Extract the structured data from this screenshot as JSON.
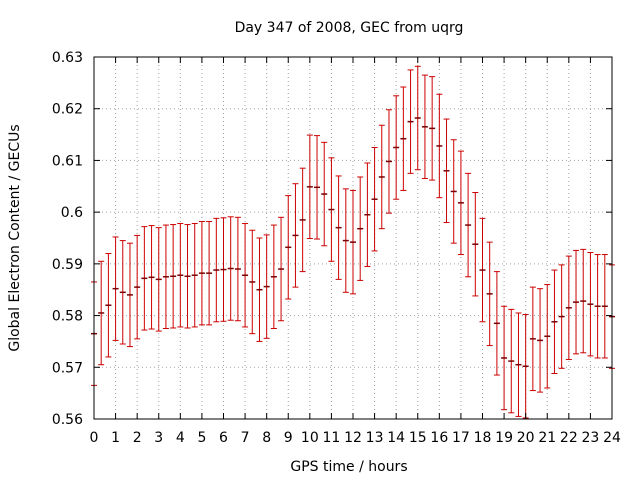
{
  "chart_data": {
    "type": "scatter",
    "title": "Day 347 of 2008, GEC from uqrg",
    "xlabel": "GPS time / hours",
    "ylabel": "Global Electron Content / GECUs",
    "xlim": [
      0,
      24
    ],
    "ylim": [
      0.56,
      0.63
    ],
    "grid": true,
    "error_bars": "symmetric, constant half-width",
    "error_half_width": 0.01,
    "x_ticks": [
      "0",
      "1",
      "2",
      "3",
      "4",
      "5",
      "6",
      "7",
      "8",
      "9",
      "10",
      "11",
      "12",
      "13",
      "14",
      "15",
      "16",
      "17",
      "18",
      "19",
      "20",
      "21",
      "22",
      "23",
      "24"
    ],
    "y_ticks": [
      "0.56",
      "0.57",
      "0.58",
      "0.59",
      "0.6",
      "0.61",
      "0.62",
      "0.63"
    ],
    "series": [
      {
        "color": "#cc0000",
        "x": [
          0,
          0.333,
          0.667,
          1,
          1.333,
          1.667,
          2,
          2.333,
          2.667,
          3,
          3.333,
          3.667,
          4,
          4.333,
          4.667,
          5,
          5.333,
          5.667,
          6,
          6.333,
          6.667,
          7,
          7.333,
          7.667,
          8,
          8.333,
          8.667,
          9,
          9.333,
          9.667,
          10,
          10.333,
          10.667,
          11,
          11.333,
          11.667,
          12,
          12.333,
          12.667,
          13,
          13.333,
          13.667,
          14,
          14.333,
          14.667,
          15,
          15.333,
          15.667,
          16,
          16.333,
          16.667,
          17,
          17.333,
          17.667,
          18,
          18.333,
          18.667,
          19,
          19.333,
          19.667,
          20,
          20.333,
          20.667,
          21,
          21.333,
          21.667,
          22,
          22.333,
          22.667,
          23,
          23.333,
          23.667,
          24
        ],
        "y": [
          0.5765,
          0.5805,
          0.582,
          0.5852,
          0.5845,
          0.584,
          0.5855,
          0.5872,
          0.5874,
          0.587,
          0.5875,
          0.5876,
          0.5878,
          0.5876,
          0.5878,
          0.5882,
          0.5882,
          0.5888,
          0.5889,
          0.5891,
          0.589,
          0.5878,
          0.5865,
          0.585,
          0.5856,
          0.5875,
          0.589,
          0.5932,
          0.5955,
          0.5985,
          0.6049,
          0.6048,
          0.6035,
          0.6005,
          0.597,
          0.5945,
          0.5942,
          0.5968,
          0.5995,
          0.6025,
          0.6068,
          0.6098,
          0.6125,
          0.6142,
          0.6175,
          0.6182,
          0.6165,
          0.6162,
          0.6128,
          0.608,
          0.604,
          0.6018,
          0.5975,
          0.5938,
          0.5888,
          0.5842,
          0.5785,
          0.5718,
          0.5712,
          0.5705,
          0.5702,
          0.5755,
          0.5752,
          0.576,
          0.5788,
          0.5798,
          0.5815,
          0.5826,
          0.5828,
          0.5822,
          0.5818,
          0.5818,
          0.5798
        ]
      }
    ]
  }
}
